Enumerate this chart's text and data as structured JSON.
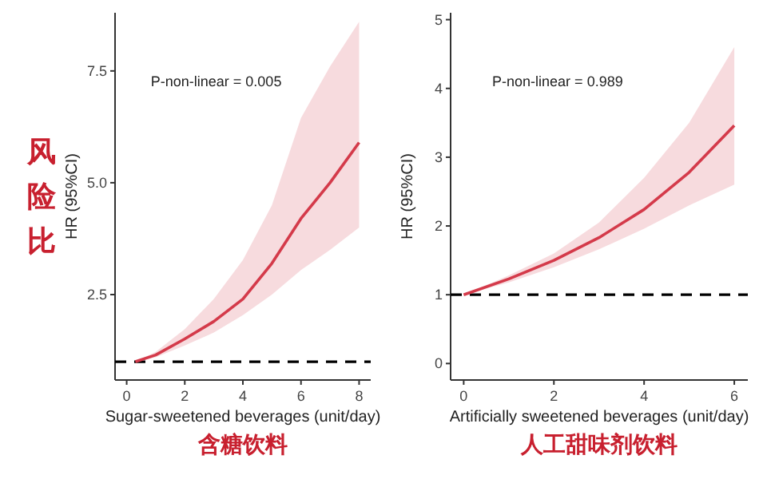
{
  "chart_data": [
    {
      "type": "line",
      "xlabel": "Sugar-sweetened beverages (unit/day)",
      "ylabel": "HR (95%CI)",
      "annotations": [
        "P-non-linear = 0.005",
        "风险比",
        "含糖饮料"
      ],
      "xlim": [
        -0.4,
        8.4
      ],
      "ylim": [
        0.59,
        8.8
      ],
      "xticks": [
        0,
        2,
        4,
        6,
        8
      ],
      "yticks": [
        {
          "value": 2.5,
          "label": "2.5"
        },
        {
          "value": 5,
          "label": "5.0"
        },
        {
          "value": 7.5,
          "label": "7.5"
        }
      ],
      "ref_lines": [
        {
          "axis": "y",
          "value": 1,
          "color": "#000000",
          "line_style": "dashed"
        }
      ],
      "series": [
        {
          "color": "#d43a4a",
          "x": [
            0.3,
            1,
            2,
            3,
            4,
            5,
            6,
            7,
            8
          ],
          "values": [
            1.0,
            1.15,
            1.51,
            1.9,
            2.4,
            3.2,
            4.2,
            5.0,
            5.9
          ],
          "lower": [
            1.0,
            1.1,
            1.36,
            1.65,
            2.04,
            2.5,
            3.05,
            3.5,
            4.0
          ],
          "upper": [
            1.0,
            1.22,
            1.73,
            2.4,
            3.27,
            4.5,
            6.45,
            7.6,
            8.6
          ]
        }
      ]
    },
    {
      "type": "line",
      "xlabel": "Artificially sweetened beverages (unit/day)",
      "ylabel": "HR (95%CI)",
      "annotations": [
        "P-non-linear = 0.989",
        "人工甜味剂饮料"
      ],
      "xlim": [
        -0.29,
        6.3
      ],
      "ylim": [
        -0.24,
        5.1
      ],
      "xticks": [
        0,
        2,
        4,
        6
      ],
      "yticks": [
        0,
        1,
        2,
        3,
        4,
        5
      ],
      "ref_lines": [
        {
          "axis": "y",
          "value": 1,
          "color": "#000000",
          "line_style": "dashed"
        }
      ],
      "series": [
        {
          "color": "#d43a4a",
          "x": [
            0,
            1,
            2,
            3,
            4,
            5,
            6
          ],
          "values": [
            1.0,
            1.23,
            1.5,
            1.83,
            2.24,
            2.78,
            3.46
          ],
          "lower": [
            1.0,
            1.18,
            1.4,
            1.66,
            1.96,
            2.3,
            2.6
          ],
          "upper": [
            1.0,
            1.28,
            1.6,
            2.05,
            2.7,
            3.5,
            4.6
          ]
        }
      ]
    }
  ]
}
